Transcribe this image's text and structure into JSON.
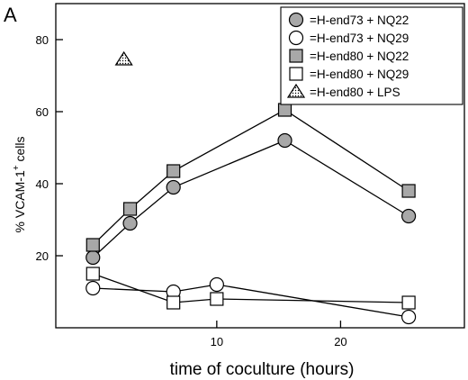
{
  "panel_label": "A",
  "chart_data": {
    "type": "line",
    "title": "",
    "xlabel": "time of coculture (hours)",
    "ylabel_main": "% VCAM-1",
    "ylabel_sup": "+",
    "ylabel_tail": " cells",
    "xlim": [
      -3,
      30
    ],
    "ylim": [
      0,
      90
    ],
    "xticks": [
      10,
      20
    ],
    "yticks": [
      20,
      40,
      60,
      80
    ],
    "grid": false,
    "legend_position": "top-right",
    "colors": {
      "gray_fill": "#a8a8a8",
      "open_fill": "#ffffff",
      "stroke": "#000000"
    },
    "series": [
      {
        "name": "=H-end73 + NQ22",
        "marker": "circle",
        "fill": "gray",
        "x": [
          0,
          3,
          6.5,
          15.5,
          25.5
        ],
        "y": [
          19.5,
          29,
          39,
          52,
          31
        ]
      },
      {
        "name": "=H-end73 + NQ29",
        "marker": "circle",
        "fill": "open",
        "x": [
          0,
          6.5,
          10,
          25.5
        ],
        "y": [
          11,
          10,
          12,
          3
        ]
      },
      {
        "name": "=H-end80 + NQ22",
        "marker": "square",
        "fill": "gray",
        "x": [
          0,
          3,
          6.5,
          15.5,
          25.5
        ],
        "y": [
          23,
          33,
          43.5,
          60.5,
          38
        ]
      },
      {
        "name": "=H-end80 + NQ29",
        "marker": "square",
        "fill": "open",
        "x": [
          0,
          6.5,
          10,
          25.5
        ],
        "y": [
          15,
          7,
          8,
          7
        ]
      },
      {
        "name": "=H-end80 + LPS",
        "marker": "triangle",
        "fill": "dotted",
        "x": [
          2.5
        ],
        "y": [
          74.5
        ]
      }
    ]
  }
}
